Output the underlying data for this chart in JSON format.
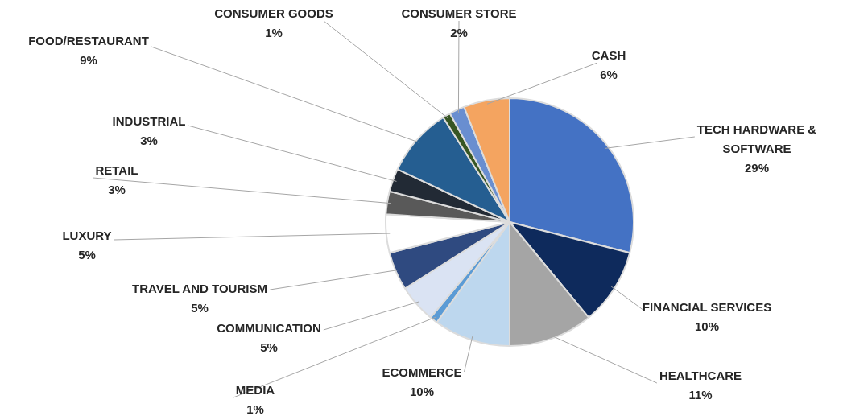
{
  "chart_data": {
    "type": "pie",
    "categories": [
      "TECH HARDWARE & SOFTWARE",
      "FINANCIAL SERVICES",
      "HEALTHCARE",
      "ECOMMERCE",
      "MEDIA",
      "COMMUNICATION",
      "TRAVEL AND TOURISM",
      "LUXURY",
      "RETAIL",
      "INDUSTRIAL",
      "FOOD/RESTAURANT",
      "CONSUMER GOODS",
      "CONSUMER STORE",
      "CASH"
    ],
    "values": [
      29,
      10,
      11,
      10,
      1,
      5,
      5,
      5,
      3,
      3,
      9,
      1,
      2,
      6
    ],
    "value_labels": [
      "29%",
      "10%",
      "11%",
      "10%",
      "1%",
      "5%",
      "5%",
      "5%",
      "3%",
      "3%",
      "9%",
      "1%",
      "2%",
      "6%"
    ],
    "colors": [
      "#4472c4",
      "#0e2a5c",
      "#a5a5a5",
      "#bdd7ee",
      "#5b9bd5",
      "#dae3f3",
      "#2f4a80",
      "#ffffff",
      "#595959",
      "#222a35",
      "#255e91",
      "#375623",
      "#698ed0",
      "#f4a460"
    ],
    "legend": false
  }
}
